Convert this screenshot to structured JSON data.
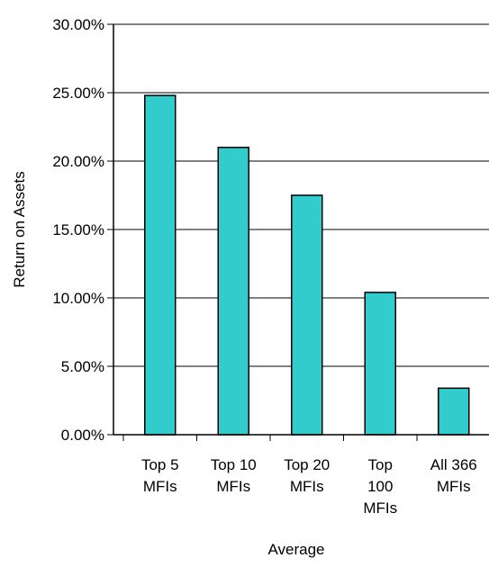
{
  "chart_data": {
    "type": "bar",
    "categories": [
      [
        "Top 5",
        "MFIs"
      ],
      [
        "Top 10",
        "MFIs"
      ],
      [
        "Top 20",
        "MFIs"
      ],
      [
        "Top",
        "100",
        "MFIs"
      ],
      [
        "All 366",
        "MFIs"
      ]
    ],
    "values": [
      24.8,
      21.0,
      17.5,
      10.4,
      3.4
    ],
    "ylim": [
      0,
      30
    ],
    "yticks": [
      0,
      5,
      10,
      15,
      20,
      25,
      30
    ],
    "ytick_labels": [
      "0.00%",
      "5.00%",
      "10.00%",
      "15.00%",
      "20.00%",
      "25.00%",
      "30.00%"
    ],
    "xlabel": "Average",
    "ylabel": "Return on Assets",
    "grid": true,
    "legend": "none"
  },
  "colors": {
    "bar_fill": "#33CCCC",
    "bar_stroke": "#000000",
    "grid": "#000000",
    "axis": "#000000"
  }
}
